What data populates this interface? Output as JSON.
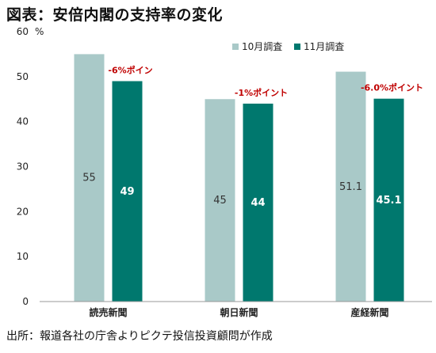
{
  "title": "図表：安倍内閣の支持率の変化",
  "source": "出所：報道各社の庁舎よりピクテ投信投資顧問が作成",
  "chart_data": {
    "type": "bar",
    "title": "図表：安倍内閣の支持率の変化",
    "ylabel": "%",
    "ylim": [
      0,
      60
    ],
    "yticks": [
      0,
      10,
      20,
      30,
      40,
      50,
      60
    ],
    "grid": false,
    "legend_position": "top-right",
    "categories": [
      "読売新聞",
      "朝日新聞",
      "産経新聞"
    ],
    "series": [
      {
        "name": "10月調査",
        "color": "#a9c9c8",
        "values": [
          55,
          45,
          51.1
        ],
        "labels": [
          "55",
          "45",
          "51.1"
        ]
      },
      {
        "name": "11月調査",
        "color": "#00786e",
        "values": [
          49,
          44,
          45.1
        ],
        "labels": [
          "49",
          "44",
          "45.1"
        ]
      }
    ],
    "annotations": [
      "-6%ポイン",
      "-1%ポイント",
      "-6.0%ポイント"
    ]
  }
}
